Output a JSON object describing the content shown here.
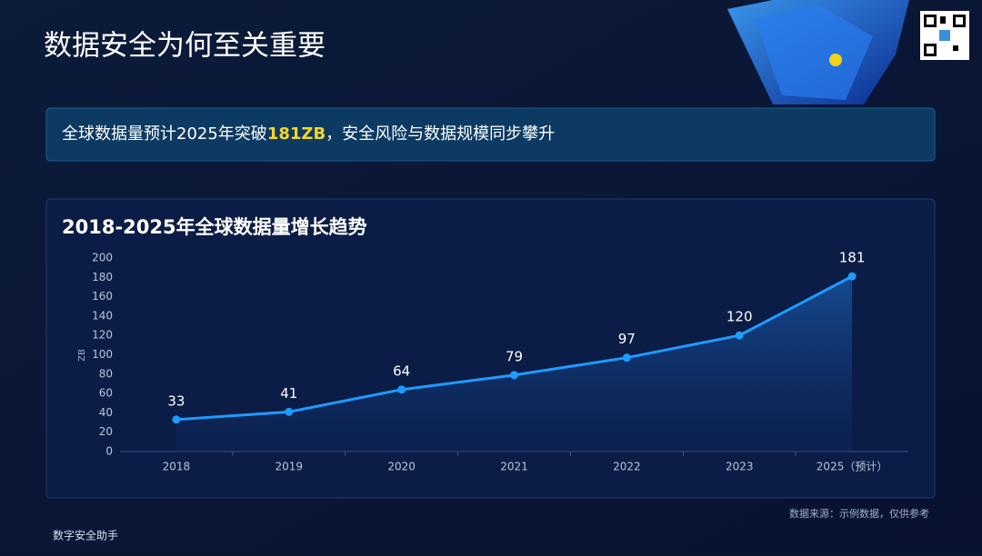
{
  "header": {
    "title": "数据安全为何至关重要"
  },
  "banner": {
    "text_before": "全球数据量预计2025年突破",
    "highlight": "181ZB",
    "text_after": "，安全风险与数据规模同步攀升"
  },
  "chart_data": {
    "type": "line",
    "title": "2018-2025年全球数据量增长趋势",
    "y_label": "ZB",
    "categories": [
      "2018",
      "2019",
      "2020",
      "2021",
      "2022",
      "2023",
      "2025（预计）"
    ],
    "series": [
      {
        "color": "#1e9bff",
        "values": [
          33,
          41,
          64,
          79,
          97,
          120,
          181
        ]
      }
    ],
    "ylim": [
      0,
      200
    ],
    "yticks": [
      0,
      20,
      40,
      60,
      80,
      100,
      120,
      140,
      160,
      180,
      200
    ],
    "grid": false
  },
  "source": "数据来源：示例数据，仅供参考",
  "footer": "数字安全助手"
}
